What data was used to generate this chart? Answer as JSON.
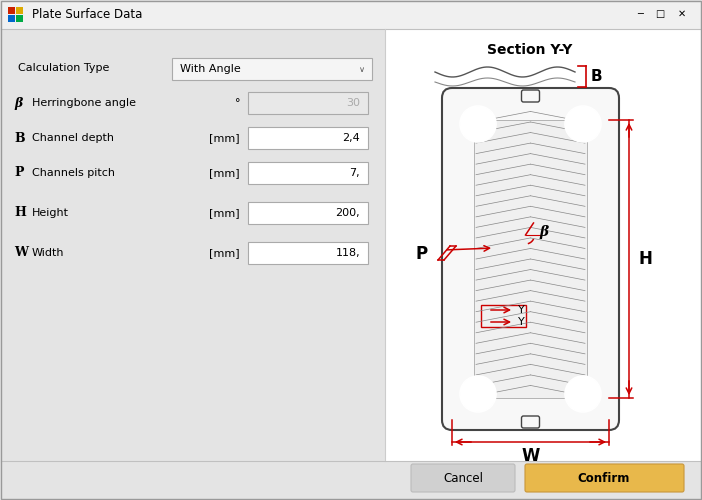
{
  "title": "Plate Surface Data",
  "bg_color": "#e4e4e4",
  "panel_bg": "#e4e4e4",
  "right_bg": "#ffffff",
  "title_bar_color": "#f0f0f0",
  "title_bar_border": "#c0c0c0",
  "section_title": "Section Y-Y",
  "fields": [
    {
      "symbol": "",
      "label": "Calculation Type",
      "unit": "",
      "value": "With Angle",
      "is_dropdown": true
    },
    {
      "symbol": "β",
      "label": "Herringbone angle",
      "unit": "°",
      "value": "30",
      "grayed": true
    },
    {
      "symbol": "B",
      "label": "Channel depth",
      "unit": "[mm]",
      "value": "2,4",
      "grayed": false
    },
    {
      "symbol": "P",
      "label": "Channels pitch",
      "unit": "[mm]",
      "value": "7,",
      "grayed": false
    },
    {
      "symbol": "H",
      "label": "Height",
      "unit": "[mm]",
      "value": "200,",
      "grayed": false
    },
    {
      "symbol": "W",
      "label": "Width",
      "unit": "[mm]",
      "value": "118,",
      "grayed": false
    }
  ],
  "button_cancel": "Cancel",
  "button_confirm": "Confirm",
  "button_cancel_color": "#d0d0d0",
  "button_confirm_color": "#e8b84b",
  "red_color": "#cc0000",
  "plate_outline_color": "#444444",
  "plate_fill": "#f8f8f8",
  "herring_line_color": "#888888"
}
